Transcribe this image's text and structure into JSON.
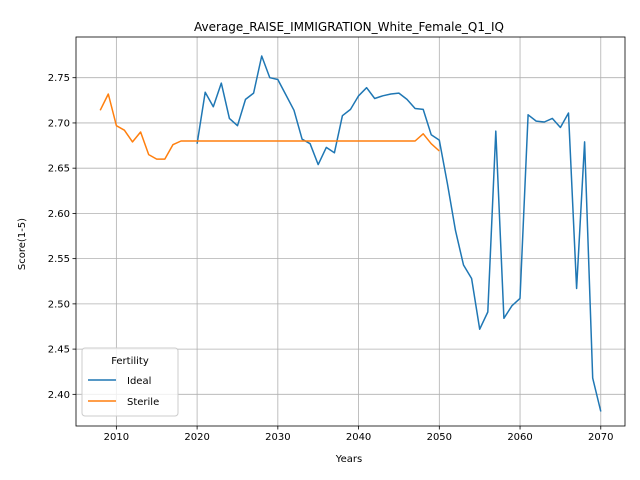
{
  "chart_data": {
    "type": "line",
    "title": "Average_RAISE_IMMIGRATION_White_Female_Q1_IQ",
    "xlabel": "Years",
    "ylabel": "Score(1-5)",
    "xlim": [
      2005,
      2073
    ],
    "ylim": [
      2.365,
      2.795
    ],
    "xticks": [
      2010,
      2020,
      2030,
      2040,
      2050,
      2060,
      2070
    ],
    "yticks": [
      2.4,
      2.45,
      2.5,
      2.55,
      2.6,
      2.65,
      2.7,
      2.75
    ],
    "grid": true,
    "legend": {
      "title": "Fertility",
      "placement": "lower-left"
    },
    "series": [
      {
        "name": "Ideal",
        "color": "#1f77b4",
        "x": [
          2020,
          2021,
          2022,
          2023,
          2024,
          2025,
          2026,
          2027,
          2028,
          2029,
          2030,
          2031,
          2032,
          2033,
          2034,
          2035,
          2036,
          2037,
          2038,
          2039,
          2040,
          2041,
          2042,
          2043,
          2044,
          2045,
          2046,
          2047,
          2048,
          2049,
          2050,
          2051,
          2052,
          2053,
          2054,
          2055,
          2056,
          2057,
          2058,
          2059,
          2060,
          2061,
          2062,
          2063,
          2064,
          2065,
          2066,
          2067,
          2068,
          2069,
          2070
        ],
        "y": [
          2.677,
          2.734,
          2.718,
          2.744,
          2.705,
          2.697,
          2.726,
          2.733,
          2.774,
          2.75,
          2.748,
          2.731,
          2.714,
          2.682,
          2.677,
          2.654,
          2.673,
          2.667,
          2.708,
          2.715,
          2.73,
          2.739,
          2.727,
          2.73,
          2.732,
          2.733,
          2.726,
          2.716,
          2.715,
          2.687,
          2.681,
          2.633,
          2.581,
          2.543,
          2.528,
          2.472,
          2.491,
          2.691,
          2.484,
          2.498,
          2.506,
          2.709,
          2.702,
          2.701,
          2.705,
          2.695,
          2.711,
          2.517,
          2.679,
          2.418,
          2.381
        ]
      },
      {
        "name": "Sterile",
        "color": "#ff7f0e",
        "x": [
          2008,
          2009,
          2010,
          2011,
          2012,
          2013,
          2014,
          2015,
          2016,
          2017,
          2018,
          2019,
          2020,
          2021,
          2022,
          2023,
          2024,
          2025,
          2026,
          2027,
          2028,
          2029,
          2030,
          2031,
          2032,
          2033,
          2034,
          2035,
          2036,
          2037,
          2038,
          2039,
          2040,
          2041,
          2042,
          2043,
          2044,
          2045,
          2046,
          2047,
          2048,
          2049,
          2050
        ],
        "y": [
          2.714,
          2.732,
          2.697,
          2.692,
          2.679,
          2.69,
          2.665,
          2.66,
          2.66,
          2.676,
          2.68,
          2.68,
          2.68,
          2.68,
          2.68,
          2.68,
          2.68,
          2.68,
          2.68,
          2.68,
          2.68,
          2.68,
          2.68,
          2.68,
          2.68,
          2.68,
          2.68,
          2.68,
          2.68,
          2.68,
          2.68,
          2.68,
          2.68,
          2.68,
          2.68,
          2.68,
          2.68,
          2.68,
          2.68,
          2.68,
          2.688,
          2.677,
          2.669
        ]
      }
    ]
  }
}
